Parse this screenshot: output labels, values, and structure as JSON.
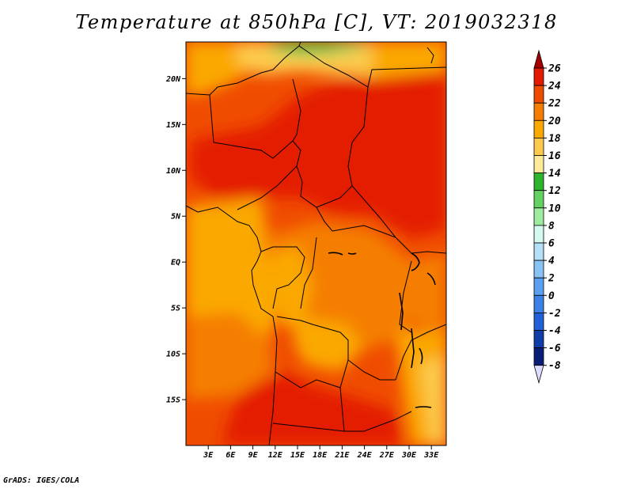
{
  "title": "Temperature at 850hPa [C], VT: 2019032318",
  "footer": "GrADS: IGES/COLA",
  "map": {
    "lon_range": [
      0,
      35
    ],
    "lat_range": [
      -20,
      24
    ],
    "lat_ticks": [
      {
        "value": 20,
        "label": "20N"
      },
      {
        "value": 15,
        "label": "15N"
      },
      {
        "value": 10,
        "label": "10N"
      },
      {
        "value": 5,
        "label": "5N"
      },
      {
        "value": 0,
        "label": "EQ"
      },
      {
        "value": -5,
        "label": "5S"
      },
      {
        "value": -10,
        "label": "10S"
      },
      {
        "value": -15,
        "label": "15S"
      }
    ],
    "lon_ticks": [
      {
        "value": 3,
        "label": "3E"
      },
      {
        "value": 6,
        "label": "6E"
      },
      {
        "value": 9,
        "label": "9E"
      },
      {
        "value": 12,
        "label": "12E"
      },
      {
        "value": 15,
        "label": "15E"
      },
      {
        "value": 18,
        "label": "18E"
      },
      {
        "value": 21,
        "label": "21E"
      },
      {
        "value": 24,
        "label": "24E"
      },
      {
        "value": 27,
        "label": "27E"
      },
      {
        "value": 30,
        "label": "30E"
      },
      {
        "value": 33,
        "label": "33E"
      }
    ]
  },
  "colorbar": {
    "levels": [
      {
        "label": "26",
        "color": "#a50000"
      },
      {
        "label": "24",
        "color": "#e41a00"
      },
      {
        "label": "22",
        "color": "#f04c00"
      },
      {
        "label": "20",
        "color": "#f57e00"
      },
      {
        "label": "18",
        "color": "#fba800"
      },
      {
        "label": "16",
        "color": "#fcca4c"
      },
      {
        "label": "14",
        "color": "#fdeb9a"
      },
      {
        "label": "12",
        "color": "#2db52d"
      },
      {
        "label": "10",
        "color": "#63d263"
      },
      {
        "label": "8",
        "color": "#9feb9f"
      },
      {
        "label": "6",
        "color": "#d5f8f0"
      },
      {
        "label": "4",
        "color": "#b4e0fa"
      },
      {
        "label": "2",
        "color": "#87c3f5"
      },
      {
        "label": "0",
        "color": "#5aa0f0"
      },
      {
        "label": "-2",
        "color": "#3c82e6"
      },
      {
        "label": "-4",
        "color": "#2060d8"
      },
      {
        "label": "-6",
        "color": "#0f3ea8"
      },
      {
        "label": "-8",
        "color": "#0a1e78"
      }
    ],
    "below_color": "#dcdcff"
  }
}
